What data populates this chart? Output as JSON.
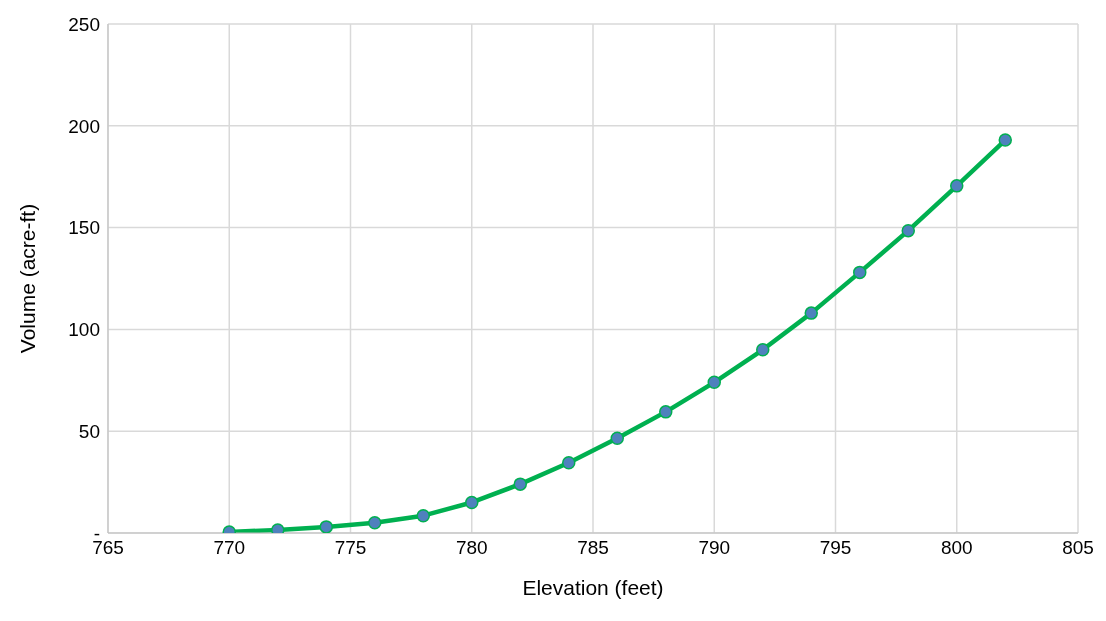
{
  "chart_data": {
    "type": "line",
    "xlabel": "Elevation (feet)",
    "ylabel": "Volume (acre-ft)",
    "x": [
      770,
      772,
      774,
      776,
      778,
      780,
      782,
      784,
      786,
      788,
      790,
      792,
      794,
      796,
      798,
      800,
      802
    ],
    "series": [
      {
        "color": "#00b050",
        "values": [
          0.5,
          1.5,
          3,
          5,
          8.5,
          15,
          24,
          34.5,
          46.5,
          59.5,
          74,
          90,
          108,
          128,
          148.5,
          170.5,
          193
        ]
      }
    ],
    "xlim": [
      765,
      805
    ],
    "xticks": [
      765,
      770,
      775,
      780,
      785,
      790,
      795,
      800,
      805
    ],
    "ylim": [
      0,
      250
    ],
    "yticks": [
      {
        "value": 0,
        "label": "-"
      },
      50,
      100,
      150,
      200,
      250
    ],
    "grid": true,
    "marker": "circle",
    "line_style": "solid"
  }
}
